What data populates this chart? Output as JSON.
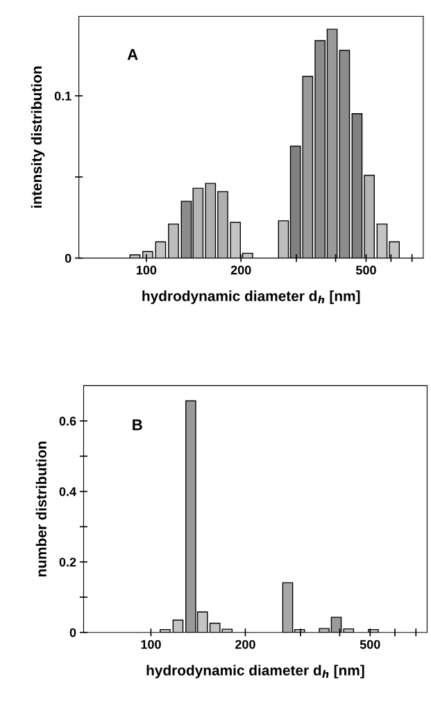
{
  "chart_data": [
    {
      "type": "bar",
      "x": [
        92,
        101,
        111,
        122,
        134,
        146,
        160,
        175,
        192,
        210,
        273,
        298,
        326,
        357,
        390,
        427,
        468,
        512,
        562,
        615
      ],
      "values": [
        0.002,
        0.004,
        0.01,
        0.021,
        0.035,
        0.043,
        0.046,
        0.041,
        0.022,
        0.003,
        0.023,
        0.069,
        0.112,
        0.134,
        0.141,
        0.128,
        0.089,
        0.051,
        0.021,
        0.01
      ],
      "colors": [
        "#c4c4c4",
        "#c4c4c4",
        "#c4c4c4",
        "#bdbdbd",
        "#8c8c8c",
        "#b5b5b5",
        "#b0b0b0",
        "#b0b0b0",
        "#c4c4c4",
        "#c4c4c4",
        "#bdbdbd",
        "#808080",
        "#9a9a9a",
        "#8c8c8c",
        "#9a9a9a",
        "#8c8c8c",
        "#808080",
        "#b5b5b5",
        "#c4c4c4",
        "#c4c4c4"
      ],
      "log": "x",
      "xlim": [
        61,
        760
      ],
      "xticks": [
        100,
        200,
        {
          "value": 300,
          "label": null
        },
        {
          "value": 400,
          "label": null
        },
        500,
        {
          "value": 600,
          "label": null
        },
        {
          "value": 700,
          "label": null
        }
      ],
      "ylim": [
        0,
        0.149
      ],
      "yticks": [
        0,
        {
          "value": 0.05,
          "label": null
        },
        0.1
      ],
      "xlabel": "hydrodynamic diameter d$_{h}$ [nm]",
      "ylabel": "intensity distribution",
      "annotations": [
        "A"
      ],
      "grid": false
    },
    {
      "type": "bar",
      "x": [
        111,
        122,
        134,
        146,
        160,
        175,
        192,
        273,
        298,
        326,
        357,
        390,
        427,
        468,
        512
      ],
      "values": [
        0.008,
        0.035,
        0.657,
        0.058,
        0.026,
        0.009,
        null,
        0.141,
        0.008,
        null,
        0.011,
        0.043,
        0.01,
        null,
        0.008
      ],
      "colors": [
        "#c4c4c4",
        "#c4c4c4",
        "#9a9a9a",
        "#c4c4c4",
        "#c4c4c4",
        "#c4c4c4",
        "#c4c4c4",
        "#a8a8a8",
        "#c4c4c4",
        "#c4c4c4",
        "#b5b5b5",
        "#9a9a9a",
        "#c4c4c4",
        "#c4c4c4",
        "#c4c4c4"
      ],
      "log": "x",
      "xlim": [
        61,
        760
      ],
      "xticks": [
        100,
        200,
        {
          "value": 300,
          "label": null
        },
        {
          "value": 400,
          "label": null
        },
        500,
        {
          "value": 600,
          "label": null
        },
        {
          "value": 700,
          "label": null
        }
      ],
      "ylim": [
        0,
        0.7
      ],
      "yticks": [
        0,
        {
          "value": 0.1,
          "label": null
        },
        0.2,
        {
          "value": 0.3,
          "label": null
        },
        0.4,
        {
          "value": 0.5,
          "label": null
        },
        0.6
      ],
      "xlabel": "hydrodynamic diameter d$_{h}$ [nm]",
      "ylabel": "number distribution",
      "annotations": [
        "B"
      ],
      "grid": false
    }
  ]
}
